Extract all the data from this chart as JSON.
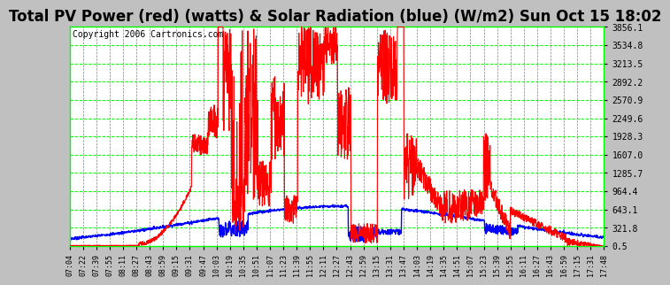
{
  "title": "Total PV Power (red) (watts) & Solar Radiation (blue) (W/m2) Sun Oct 15 18:02",
  "copyright": "Copyright 2006 Cartronics.com",
  "plot_bg_color": "#ffffff",
  "outer_bg_color": "#c0c0c0",
  "grid_color_h": "#00ff00",
  "grid_color_v": "#808080",
  "red_color": "#ff0000",
  "blue_color": "#0000ff",
  "y_ticks": [
    0.5,
    321.8,
    643.1,
    964.4,
    1285.7,
    1607.0,
    1928.3,
    2249.6,
    2570.9,
    2892.2,
    3213.5,
    3534.8,
    3856.1
  ],
  "x_labels": [
    "07:04",
    "07:22",
    "07:39",
    "07:55",
    "08:11",
    "08:27",
    "08:43",
    "08:59",
    "09:15",
    "09:31",
    "09:47",
    "10:03",
    "10:19",
    "10:35",
    "10:51",
    "11:07",
    "11:23",
    "11:39",
    "11:55",
    "12:11",
    "12:27",
    "12:43",
    "12:59",
    "13:15",
    "13:31",
    "13:47",
    "14:03",
    "14:19",
    "14:35",
    "14:51",
    "15:07",
    "15:23",
    "15:39",
    "15:55",
    "16:11",
    "16:27",
    "16:43",
    "16:59",
    "17:15",
    "17:31",
    "17:48"
  ],
  "y_min": 0.5,
  "y_max": 3856.1,
  "title_fontsize": 12,
  "copyright_fontsize": 7,
  "tick_fontsize": 7,
  "xtick_fontsize": 6
}
